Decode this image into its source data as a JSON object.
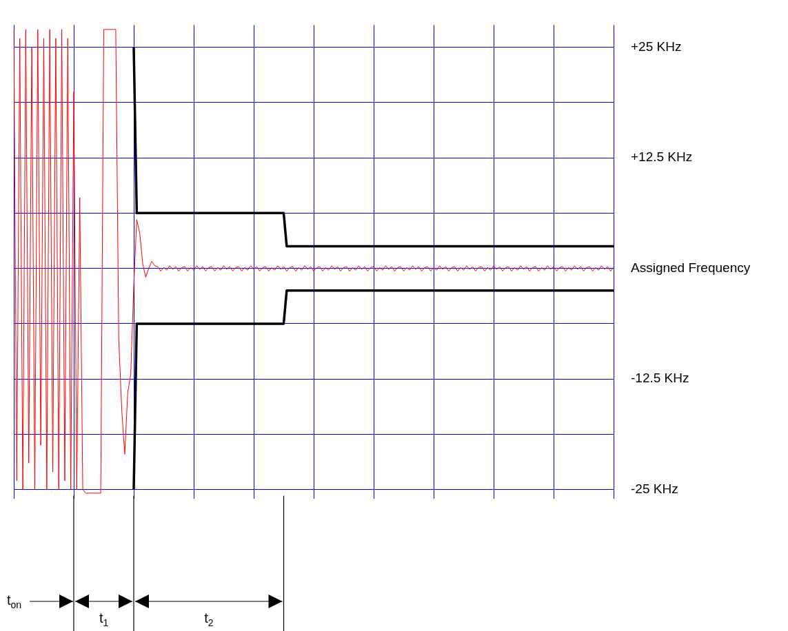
{
  "chart_data": {
    "type": "line",
    "categories": [
      null,
      null,
      null,
      null,
      null,
      null,
      null,
      null,
      null,
      null,
      null,
      null,
      null,
      null,
      null,
      null,
      null,
      null,
      null,
      null,
      null,
      null,
      null,
      null,
      null,
      null,
      null,
      null,
      null,
      null,
      null,
      null,
      null,
      null,
      null,
      null,
      null,
      null,
      null,
      null,
      null,
      null,
      null,
      null,
      null,
      null,
      null,
      null,
      null,
      null,
      null,
      null,
      null,
      null,
      null,
      null,
      null,
      null,
      null,
      null,
      null,
      null,
      null,
      null,
      null,
      null,
      null,
      null,
      null,
      null,
      null,
      null,
      null,
      null,
      null,
      null,
      null,
      null,
      null,
      null,
      null,
      null,
      null,
      null,
      null,
      null,
      null,
      null,
      null,
      null,
      null,
      null,
      null,
      null,
      null,
      null,
      null,
      null,
      null,
      null,
      null,
      null,
      null,
      null,
      null,
      null,
      null,
      null,
      null,
      null,
      null,
      null,
      null,
      null,
      null,
      null,
      null,
      null,
      null,
      null,
      null,
      null,
      null,
      null,
      null,
      null,
      null,
      null,
      null,
      null,
      null,
      null,
      null,
      null,
      null,
      null,
      null,
      null,
      null,
      null,
      null,
      null,
      null,
      null,
      null,
      null,
      null,
      null,
      null,
      null,
      null,
      null,
      null,
      null,
      null,
      null,
      null,
      null,
      null,
      null,
      null,
      null,
      null,
      null,
      null,
      null,
      null,
      null,
      null,
      null,
      null,
      null,
      null,
      null,
      null,
      null,
      null,
      null,
      null,
      null,
      null,
      null,
      null,
      null,
      null,
      null,
      null,
      null,
      null,
      null,
      null,
      null,
      null,
      null,
      null,
      null,
      null,
      null,
      null,
      null,
      null
    ],
    "series": [
      {
        "color": "#ff0000",
        "values": [
          27,
          -24,
          26,
          -25,
          27,
          -22,
          25,
          -25,
          27,
          -20,
          26,
          -25,
          27,
          -23,
          26,
          -25,
          27,
          -24,
          26,
          -25,
          20,
          -25,
          8,
          -25,
          -25.4,
          -25.4,
          -25.4,
          -25.4,
          -25.4,
          -25.4,
          27,
          27,
          27,
          27,
          27,
          -8,
          -16,
          -21,
          -14,
          -12,
          -2,
          5.5,
          4,
          0.5,
          -1,
          0,
          0.8,
          0.3,
          0.2,
          -0.3,
          0.1,
          -0.2,
          0.3,
          -0.1,
          0.2,
          -0.3,
          0.1,
          0.2,
          -0.3,
          0.1,
          -0.2,
          0.3,
          -0.1,
          0.2,
          -0.3,
          0.1,
          0.2,
          -0.3,
          0.1,
          -0.2,
          0.3,
          -0.1,
          0.2,
          -0.3,
          0.1,
          0.2,
          -0.3,
          0.1,
          -0.2,
          0.3,
          -0.1,
          0.2,
          -0.3,
          0.1,
          0.2,
          -0.3,
          0.1,
          -0.2,
          0.3,
          -0.1,
          0.2,
          -0.3,
          0.1,
          0.2,
          -0.3,
          0.1,
          -0.2,
          0.3,
          -0.1,
          0.2,
          -0.3,
          0.1,
          0.2,
          -0.3,
          0.1,
          -0.2,
          0.3,
          -0.1,
          0.2,
          -0.3,
          0.1,
          0.2,
          -0.3,
          0.1,
          -0.2,
          0.3,
          -0.1,
          0.2,
          -0.3,
          0.1,
          0.2,
          -0.3,
          0.1,
          -0.2,
          0.3,
          -0.1,
          0.2,
          -0.3,
          0.1,
          0.2,
          -0.3,
          0.1,
          -0.2,
          0.3,
          -0.1,
          0.2,
          -0.3,
          0.1,
          0.2,
          -0.3,
          0.1,
          -0.2,
          0.3,
          -0.1,
          0.2,
          -0.3,
          0.1,
          0.2,
          -0.3,
          0.1,
          -0.2,
          0.3,
          -0.1,
          0.2,
          -0.3,
          0.1,
          0.2,
          -0.3,
          0.1,
          -0.2,
          0.3,
          -0.1,
          0.2,
          -0.3,
          0.1,
          0.2,
          -0.3,
          0.1,
          -0.2,
          0.3,
          -0.1,
          0.2,
          -0.3,
          0.1,
          0.2,
          -0.3,
          0.1,
          -0.2,
          0.3,
          -0.1,
          0.2,
          -0.3,
          0.1,
          0.2,
          -0.3,
          0.1,
          -0.2,
          0.3,
          -0.1,
          0.2,
          -0.3,
          0.1,
          0.2,
          -0.3,
          0.1,
          -0.2,
          0.3,
          -0.1,
          0.2,
          -0.3,
          0.1
        ]
      },
      {
        "color": "#000000",
        "values": [
          null,
          null,
          null,
          null,
          null,
          null,
          null,
          null,
          null,
          null,
          null,
          null,
          null,
          null,
          null,
          null,
          null,
          null,
          null,
          null,
          null,
          null,
          null,
          null,
          null,
          null,
          null,
          null,
          null,
          null,
          null,
          null,
          null,
          null,
          null,
          null,
          null,
          null,
          null,
          null,
          25,
          6.25,
          6.25,
          6.25,
          6.25,
          6.25,
          6.25,
          6.25,
          6.25,
          6.25,
          6.25,
          6.25,
          6.25,
          6.25,
          6.25,
          6.25,
          6.25,
          6.25,
          6.25,
          6.25,
          6.25,
          6.25,
          6.25,
          6.25,
          6.25,
          6.25,
          6.25,
          6.25,
          6.25,
          6.25,
          6.25,
          6.25,
          6.25,
          6.25,
          6.25,
          6.25,
          6.25,
          6.25,
          6.25,
          6.25,
          6.25,
          6.25,
          6.25,
          6.25,
          6.25,
          6.25,
          6.25,
          6.25,
          6.25,
          6.25,
          6.25,
          2.5,
          2.5,
          2.5,
          2.5,
          2.5,
          2.5,
          2.5,
          2.5,
          2.5,
          2.5,
          2.5,
          2.5,
          2.5,
          2.5,
          2.5,
          2.5,
          2.5,
          2.5,
          2.5,
          2.5,
          2.5,
          2.5,
          2.5,
          2.5,
          2.5,
          2.5,
          2.5,
          2.5,
          2.5,
          2.5,
          2.5,
          2.5,
          2.5,
          2.5,
          2.5,
          2.5,
          2.5,
          2.5,
          2.5,
          2.5,
          2.5,
          2.5,
          2.5,
          2.5,
          2.5,
          2.5,
          2.5,
          2.5,
          2.5,
          2.5,
          2.5,
          2.5,
          2.5,
          2.5,
          2.5,
          2.5,
          2.5,
          2.5,
          2.5,
          2.5,
          2.5,
          2.5,
          2.5,
          2.5,
          2.5,
          2.5,
          2.5,
          2.5,
          2.5,
          2.5,
          2.5,
          2.5,
          2.5,
          2.5,
          2.5,
          2.5,
          2.5,
          2.5,
          2.5,
          2.5,
          2.5,
          2.5,
          2.5,
          2.5,
          2.5,
          2.5,
          2.5,
          2.5,
          2.5,
          2.5,
          2.5,
          2.5,
          2.5,
          2.5,
          2.5,
          2.5,
          2.5,
          2.5,
          2.5,
          2.5,
          2.5,
          2.5,
          2.5,
          2.5,
          2.5,
          2.5,
          2.5,
          2.5,
          2.5,
          2.5
        ]
      },
      {
        "color": "#000000",
        "values": [
          null,
          null,
          null,
          null,
          null,
          null,
          null,
          null,
          null,
          null,
          null,
          null,
          null,
          null,
          null,
          null,
          null,
          null,
          null,
          null,
          null,
          null,
          null,
          null,
          null,
          null,
          null,
          null,
          null,
          null,
          null,
          null,
          null,
          null,
          null,
          null,
          null,
          null,
          null,
          null,
          -25,
          -6.25,
          -6.25,
          -6.25,
          -6.25,
          -6.25,
          -6.25,
          -6.25,
          -6.25,
          -6.25,
          -6.25,
          -6.25,
          -6.25,
          -6.25,
          -6.25,
          -6.25,
          -6.25,
          -6.25,
          -6.25,
          -6.25,
          -6.25,
          -6.25,
          -6.25,
          -6.25,
          -6.25,
          -6.25,
          -6.25,
          -6.25,
          -6.25,
          -6.25,
          -6.25,
          -6.25,
          -6.25,
          -6.25,
          -6.25,
          -6.25,
          -6.25,
          -6.25,
          -6.25,
          -6.25,
          -6.25,
          -6.25,
          -6.25,
          -6.25,
          -6.25,
          -6.25,
          -6.25,
          -6.25,
          -6.25,
          -6.25,
          -6.25,
          -2.5,
          -2.5,
          -2.5,
          -2.5,
          -2.5,
          -2.5,
          -2.5,
          -2.5,
          -2.5,
          -2.5,
          -2.5,
          -2.5,
          -2.5,
          -2.5,
          -2.5,
          -2.5,
          -2.5,
          -2.5,
          -2.5,
          -2.5,
          -2.5,
          -2.5,
          -2.5,
          -2.5,
          -2.5,
          -2.5,
          -2.5,
          -2.5,
          -2.5,
          -2.5,
          -2.5,
          -2.5,
          -2.5,
          -2.5,
          -2.5,
          -2.5,
          -2.5,
          -2.5,
          -2.5,
          -2.5,
          -2.5,
          -2.5,
          -2.5,
          -2.5,
          -2.5,
          -2.5,
          -2.5,
          -2.5,
          -2.5,
          -2.5,
          -2.5,
          -2.5,
          -2.5,
          -2.5,
          -2.5,
          -2.5,
          -2.5,
          -2.5,
          -2.5,
          -2.5,
          -2.5,
          -2.5,
          -2.5,
          -2.5,
          -2.5,
          -2.5,
          -2.5,
          -2.5,
          -2.5,
          -2.5,
          -2.5,
          -2.5,
          -2.5,
          -2.5,
          -2.5,
          -2.5,
          -2.5,
          -2.5,
          -2.5,
          -2.5,
          -2.5,
          -2.5,
          -2.5,
          -2.5,
          -2.5,
          -2.5,
          -2.5,
          -2.5,
          -2.5,
          -2.5,
          -2.5,
          -2.5,
          -2.5,
          -2.5,
          -2.5,
          -2.5,
          -2.5,
          -2.5,
          -2.5,
          -2.5,
          -2.5,
          -2.5,
          -2.5,
          -2.5,
          -2.5,
          -2.5,
          -2.5,
          -2.5,
          -2.5,
          -2.5
        ]
      }
    ],
    "ylim": [
      -26,
      27.5
    ],
    "yticks": [
      {
        "value": -25,
        "label": "-25 KHz"
      },
      {
        "value": -18.75,
        "label": null
      },
      {
        "value": -12.5,
        "label": "-12.5 KHz"
      },
      {
        "value": -6.25,
        "label": null
      },
      {
        "value": 0,
        "label": "Assigned Frequency"
      },
      {
        "value": 6.25,
        "label": null
      },
      {
        "value": 12.5,
        "label": "+12.5 KHz"
      },
      {
        "value": 18.75,
        "label": null
      },
      {
        "value": 25,
        "label": "+25 KHz"
      }
    ],
    "annotations": [
      "t$_{on}$",
      "t$_{1}$",
      "t$_{2}$"
    ],
    "grid": true,
    "legend": false,
    "tick_labels": "y",
    "marker": "none",
    "line_style": "solid"
  }
}
